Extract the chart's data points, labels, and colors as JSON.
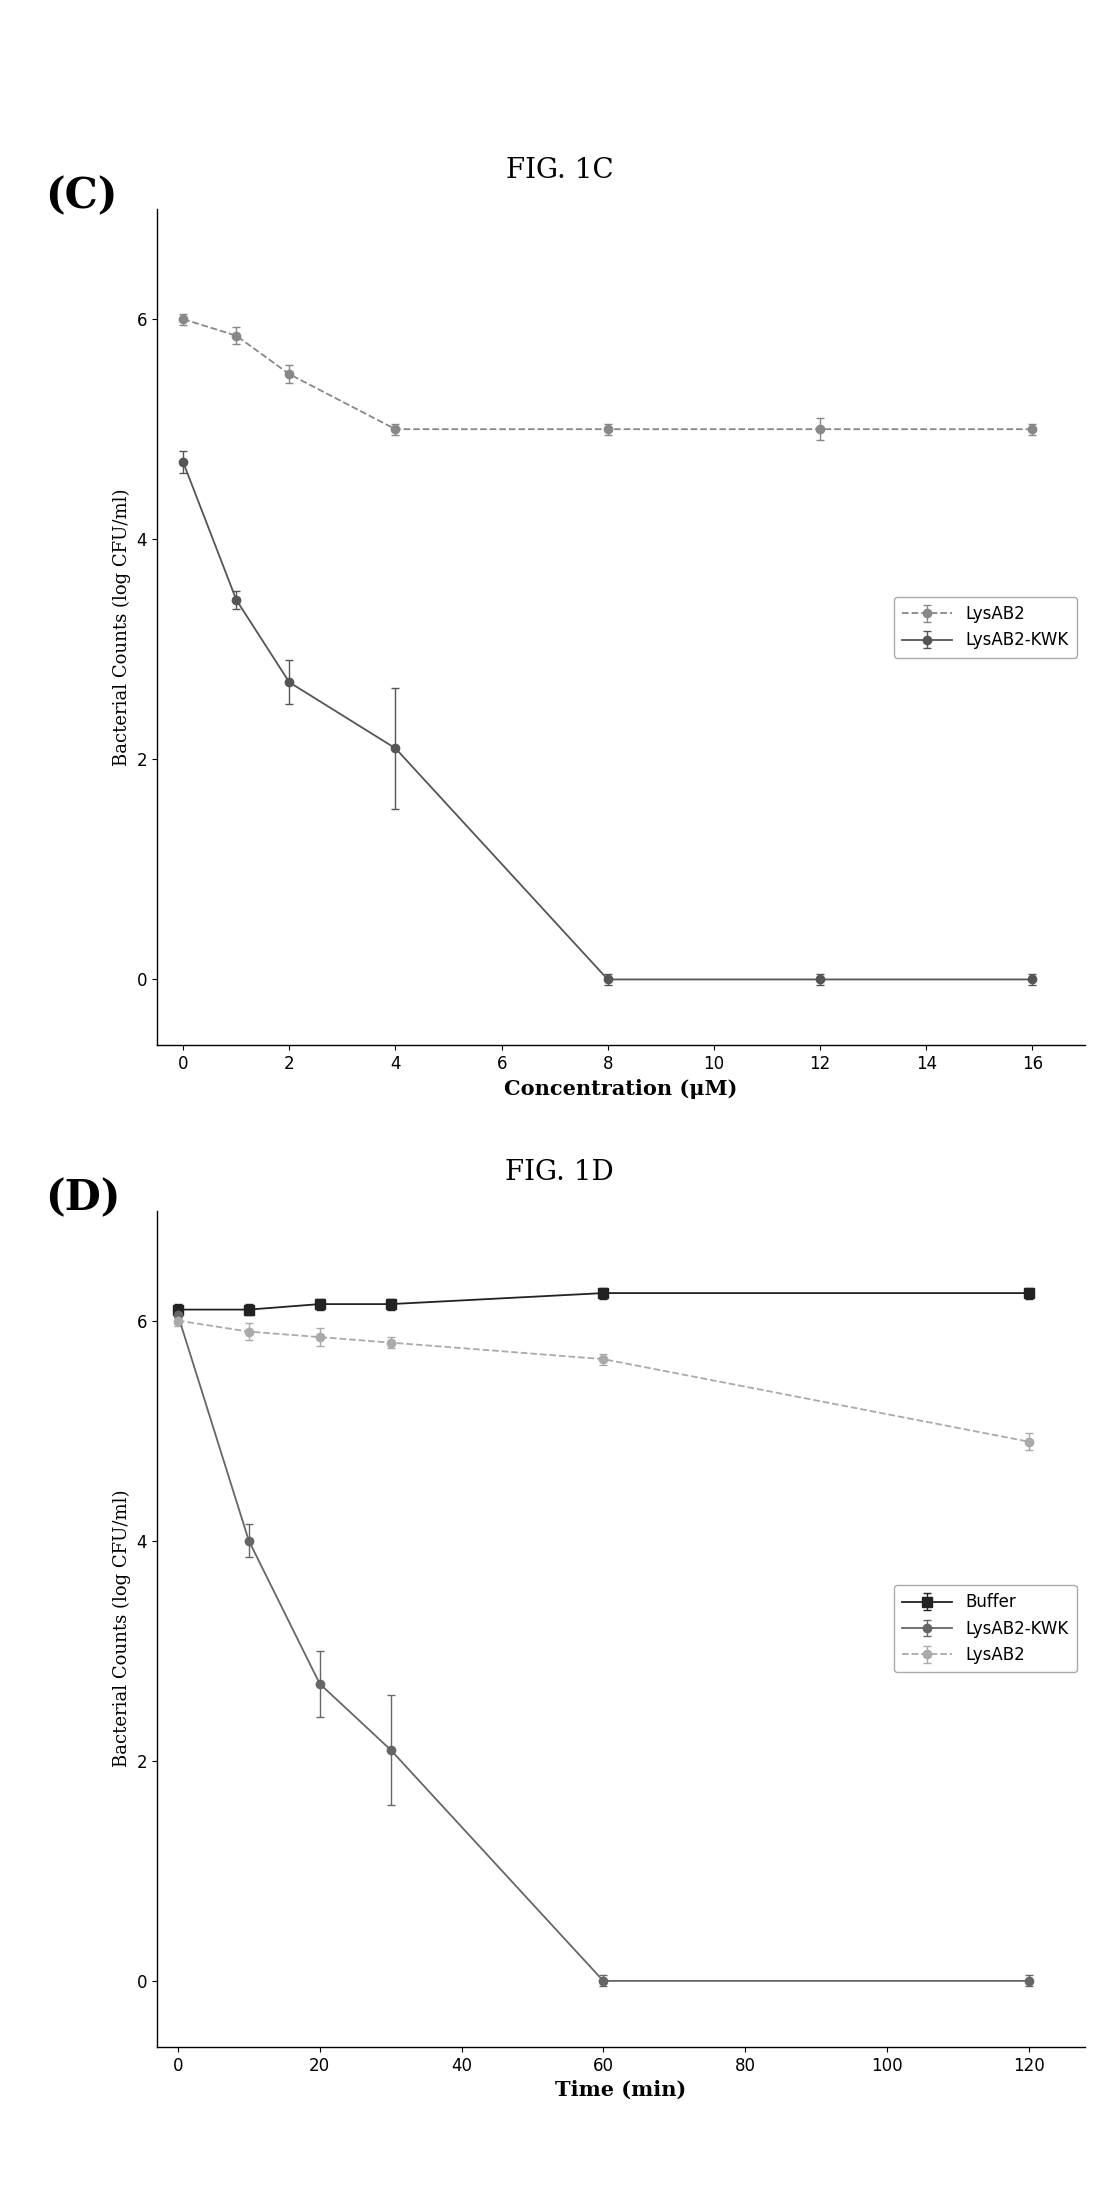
{
  "fig_title_C": "FIG. 1C",
  "fig_title_D": "FIG. 1D",
  "panel_C_label": "(C)",
  "panel_D_label": "(D)",
  "C": {
    "xlabel": "Concentration (μM)",
    "ylabel": "Bacterial Counts (log CFU/ml)",
    "xlim": [
      -0.5,
      17
    ],
    "ylim": [
      -0.6,
      7
    ],
    "xticks": [
      0,
      2,
      4,
      6,
      8,
      10,
      12,
      14,
      16
    ],
    "yticks": [
      0,
      2,
      4,
      6
    ],
    "series": [
      {
        "label": "LysAB2",
        "x": [
          0,
          1,
          2,
          4,
          8,
          12,
          16
        ],
        "y": [
          6.0,
          5.85,
          5.5,
          5.0,
          5.0,
          5.0,
          5.0
        ],
        "yerr": [
          0.05,
          0.08,
          0.08,
          0.05,
          0.05,
          0.1,
          0.05
        ],
        "color": "#888888",
        "linestyle": "--",
        "marker": "o",
        "markersize": 6,
        "markerfacecolor": "#888888"
      },
      {
        "label": "LysAB2-KWK",
        "x": [
          0,
          1,
          2,
          4,
          8,
          12,
          16
        ],
        "y": [
          4.7,
          3.45,
          2.7,
          2.1,
          0.0,
          0.0,
          0.0
        ],
        "yerr": [
          0.1,
          0.08,
          0.2,
          0.55,
          0.05,
          0.05,
          0.05
        ],
        "color": "#555555",
        "linestyle": "-",
        "marker": "o",
        "markersize": 6,
        "markerfacecolor": "#555555"
      }
    ]
  },
  "D": {
    "xlabel": "Time (min)",
    "ylabel": "Bacterial Counts (log CFU/ml)",
    "xlim": [
      -3,
      128
    ],
    "ylim": [
      -0.6,
      7
    ],
    "xticks": [
      0,
      20,
      40,
      60,
      80,
      100,
      120
    ],
    "yticks": [
      0,
      2,
      4,
      6
    ],
    "series": [
      {
        "label": "Buffer",
        "x": [
          0,
          10,
          20,
          30,
          60,
          120
        ],
        "y": [
          6.1,
          6.1,
          6.15,
          6.15,
          6.25,
          6.25
        ],
        "yerr": [
          0.05,
          0.05,
          0.05,
          0.05,
          0.05,
          0.05
        ],
        "color": "#222222",
        "linestyle": "-",
        "marker": "s",
        "markersize": 7,
        "markerfacecolor": "#222222"
      },
      {
        "label": "LysAB2-KWK",
        "x": [
          0,
          10,
          20,
          30,
          60,
          120
        ],
        "y": [
          6.05,
          4.0,
          2.7,
          2.1,
          0.0,
          0.0
        ],
        "yerr": [
          0.08,
          0.15,
          0.3,
          0.5,
          0.05,
          0.05
        ],
        "color": "#666666",
        "linestyle": "-",
        "marker": "o",
        "markersize": 6,
        "markerfacecolor": "#666666"
      },
      {
        "label": "LysAB2",
        "x": [
          0,
          10,
          20,
          30,
          60,
          120
        ],
        "y": [
          6.0,
          5.9,
          5.85,
          5.8,
          5.65,
          4.9
        ],
        "yerr": [
          0.05,
          0.08,
          0.08,
          0.05,
          0.05,
          0.08
        ],
        "color": "#aaaaaa",
        "linestyle": "--",
        "marker": "o",
        "markersize": 6,
        "markerfacecolor": "#aaaaaa"
      }
    ]
  }
}
